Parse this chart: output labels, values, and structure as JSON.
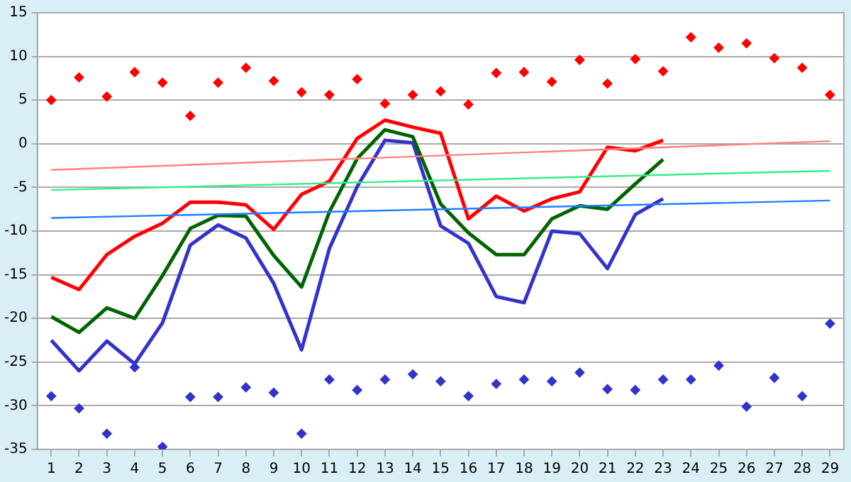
{
  "chart_data": {
    "type": "line",
    "x": [
      1,
      2,
      3,
      4,
      5,
      6,
      7,
      8,
      9,
      10,
      11,
      12,
      13,
      14,
      15,
      16,
      17,
      18,
      19,
      20,
      21,
      22,
      23,
      24,
      25,
      26,
      27,
      28,
      29
    ],
    "xlim": [
      0.5,
      29.5
    ],
    "xticks": [
      1,
      2,
      3,
      4,
      5,
      6,
      7,
      8,
      9,
      10,
      11,
      12,
      13,
      14,
      15,
      16,
      17,
      18,
      19,
      20,
      21,
      22,
      23,
      24,
      25,
      26,
      27,
      28,
      29
    ],
    "ylim": [
      -35,
      15
    ],
    "yticks": [
      -35,
      -30,
      -25,
      -20,
      -15,
      -10,
      -5,
      0,
      5,
      10,
      15
    ],
    "grid": "y",
    "legend": false,
    "marker": "none",
    "line_style": "solid",
    "series": [
      {
        "color": "#ff8080",
        "x": [
          1,
          29
        ],
        "values": [
          -3.0,
          0.3
        ]
      },
      {
        "color": "#33ee88",
        "x": [
          1,
          29
        ],
        "values": [
          -5.3,
          -3.1
        ]
      },
      {
        "color": "#1e7fff",
        "x": [
          1,
          29
        ],
        "values": [
          -8.5,
          -6.5
        ]
      },
      {
        "color": "#ff0000",
        "x": [
          1,
          2,
          3,
          4,
          5,
          6,
          7,
          8,
          9,
          10,
          11,
          12,
          13,
          14,
          15,
          16,
          17,
          18,
          19,
          20,
          21,
          22,
          23
        ],
        "values": [
          -15.3,
          -16.7,
          -12.7,
          -10.6,
          -9.1,
          -6.7,
          -6.7,
          -7.0,
          -9.8,
          -5.8,
          -4.3,
          0.6,
          2.7,
          1.9,
          1.2,
          -8.6,
          -6.0,
          -7.7,
          -6.3,
          -5.5,
          -0.4,
          -0.8,
          0.4
        ]
      },
      {
        "color": "#006400",
        "x": [
          1,
          2,
          3,
          4,
          5,
          6,
          7,
          8,
          9,
          10,
          11,
          12,
          13,
          14,
          15,
          16,
          17,
          18,
          19,
          20,
          21,
          22,
          23
        ],
        "values": [
          -19.8,
          -21.6,
          -18.8,
          -20.0,
          -15.1,
          -9.7,
          -8.2,
          -8.3,
          -12.8,
          -16.4,
          -7.8,
          -1.7,
          1.6,
          0.8,
          -6.9,
          -10.2,
          -12.7,
          -12.7,
          -8.6,
          -7.1,
          -7.5,
          -4.6,
          -1.8
        ]
      },
      {
        "color": "#3333cc",
        "x": [
          1,
          2,
          3,
          4,
          5,
          6,
          7,
          8,
          9,
          10,
          11,
          12,
          13,
          14,
          15,
          16,
          17,
          18,
          19,
          20,
          21,
          22,
          23
        ],
        "values": [
          -22.5,
          -26.0,
          -22.6,
          -25.2,
          -20.5,
          -11.6,
          -9.3,
          -10.8,
          -16.0,
          -23.6,
          -12.0,
          -4.9,
          0.4,
          0.1,
          -9.4,
          -11.4,
          -17.5,
          -18.2,
          -10.0,
          -10.3,
          -14.3,
          -8.1,
          -6.3
        ]
      },
      {
        "type": "scatter",
        "marker": "diamond",
        "color": "#ff0000",
        "values": [
          5.0,
          7.6,
          5.4,
          8.2,
          7.0,
          3.2,
          7.0,
          8.7,
          7.2,
          5.9,
          5.6,
          7.4,
          4.6,
          5.6,
          6.0,
          4.5,
          8.1,
          8.2,
          7.1,
          9.6,
          6.9,
          9.7,
          8.3,
          12.2,
          11.0,
          11.5,
          9.8,
          8.7,
          5.6
        ]
      },
      {
        "type": "scatter",
        "marker": "diamond",
        "color": "#3333cc",
        "values": [
          -28.9,
          -30.3,
          -33.2,
          -25.6,
          -34.7,
          -29.0,
          -29.0,
          -27.9,
          -28.5,
          -33.2,
          -27.0,
          -28.2,
          -27.0,
          -26.4,
          -27.2,
          -28.9,
          -27.5,
          -27.0,
          -27.2,
          -26.2,
          -28.1,
          -28.2,
          -27.0,
          -27.0,
          -25.4,
          -30.1,
          -26.8,
          -28.9,
          -20.6
        ]
      }
    ]
  }
}
